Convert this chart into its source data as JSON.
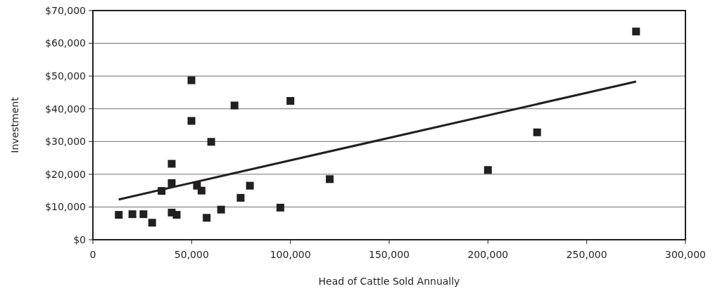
{
  "chart_data": {
    "type": "scatter",
    "xlabel": "Head of Cattle Sold Annually",
    "ylabel": "Investment",
    "xlim": [
      0,
      300000
    ],
    "xticks": [
      0,
      {
        "value": 50000,
        "label": "50,000"
      },
      {
        "value": 100000,
        "label": "100,000"
      },
      {
        "value": 150000,
        "label": "150,000"
      },
      {
        "value": 200000,
        "label": "200,000"
      },
      {
        "value": 250000,
        "label": "250,000"
      },
      {
        "value": 300000,
        "label": "300,000"
      }
    ],
    "ylim": [
      0,
      70000
    ],
    "yticks": [
      {
        "value": 0,
        "label": "$0"
      },
      {
        "value": 10000,
        "label": "$10,000"
      },
      {
        "value": 20000,
        "label": "$20,000"
      },
      {
        "value": 30000,
        "label": "$30,000"
      },
      {
        "value": 40000,
        "label": "$40,000"
      },
      {
        "value": 50000,
        "label": "$50,000"
      },
      {
        "value": 60000,
        "label": "$60,000"
      },
      {
        "value": 70000,
        "label": "$70,000"
      }
    ],
    "grid": "y",
    "series": [
      {
        "color": "#231f20",
        "marker": "square",
        "x": [
          13100,
          20000,
          25600,
          30000,
          34800,
          39900,
          39900,
          39900,
          42400,
          49900,
          49900,
          52700,
          55000,
          57600,
          59900,
          64900,
          71700,
          74800,
          79500,
          94900,
          100000,
          119900,
          200000,
          224900,
          275000
        ],
        "values": [
          7600,
          7800,
          7800,
          5200,
          14900,
          23200,
          17300,
          8300,
          7600,
          48700,
          36300,
          16500,
          15000,
          6700,
          29900,
          9200,
          41000,
          12800,
          16500,
          9800,
          42400,
          18500,
          21300,
          32800,
          63600
        ]
      },
      {
        "type": "line",
        "color": "#231f20",
        "x": [
          13100,
          275000
        ],
        "values": [
          12300,
          48300
        ]
      }
    ]
  }
}
